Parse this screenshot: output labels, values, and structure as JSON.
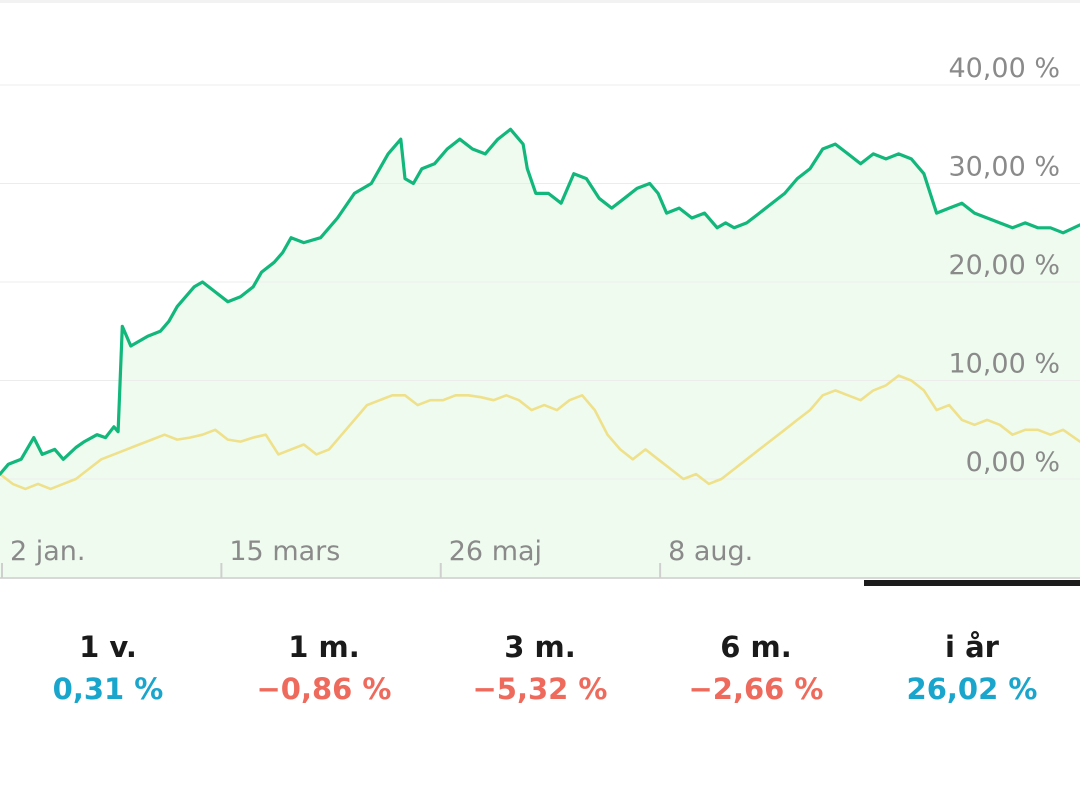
{
  "colors": {
    "series_main": "#12b77c",
    "series_index": "#efe08a",
    "area_fill": "#effbef",
    "positive": "#1aa6cc",
    "negative": "#ee6a5c",
    "grid": "#ececec",
    "tick_text": "#8a8a8a"
  },
  "chart_data": {
    "type": "line",
    "y_tick_labels": [
      "40,00 %",
      "30,00 %",
      "20,00 %",
      "10,00 %",
      "0,00 %"
    ],
    "y_ticks": [
      40,
      30,
      20,
      10,
      0
    ],
    "ylim": [
      -10,
      40
    ],
    "x_tick_labels": [
      "2 jan.",
      "15 mars",
      "26 maj",
      "8 aug."
    ],
    "x_tick_positions": [
      0,
      52,
      104,
      156
    ],
    "xlim": [
      0,
      256
    ],
    "grid": true,
    "legend": "none",
    "series": [
      {
        "values": [
          [
            0,
            0.5
          ],
          [
            2,
            1.5
          ],
          [
            5,
            2
          ],
          [
            8,
            4.2
          ],
          [
            10,
            2.5
          ],
          [
            13,
            3
          ],
          [
            15,
            2
          ],
          [
            18,
            3.2
          ],
          [
            20,
            3.8
          ],
          [
            23,
            4.5
          ],
          [
            25,
            4.2
          ],
          [
            27,
            5.3
          ],
          [
            28,
            4.8
          ],
          [
            29,
            15.5
          ],
          [
            31,
            13.5
          ],
          [
            35,
            14.5
          ],
          [
            38,
            15
          ],
          [
            40,
            16
          ],
          [
            42,
            17.5
          ],
          [
            44,
            18.5
          ],
          [
            46,
            19.5
          ],
          [
            48,
            20
          ],
          [
            51,
            19
          ],
          [
            54,
            18
          ],
          [
            57,
            18.5
          ],
          [
            60,
            19.5
          ],
          [
            62,
            21
          ],
          [
            65,
            22
          ],
          [
            67,
            23
          ],
          [
            69,
            24.5
          ],
          [
            72,
            24
          ],
          [
            76,
            24.5
          ],
          [
            80,
            26.5
          ],
          [
            84,
            29
          ],
          [
            88,
            30
          ],
          [
            92,
            33
          ],
          [
            95,
            34.5
          ],
          [
            96,
            30.5
          ],
          [
            98,
            30
          ],
          [
            100,
            31.5
          ],
          [
            103,
            32
          ],
          [
            106,
            33.5
          ],
          [
            109,
            34.5
          ],
          [
            112,
            33.5
          ],
          [
            115,
            33
          ],
          [
            118,
            34.5
          ],
          [
            121,
            35.5
          ],
          [
            124,
            34
          ],
          [
            125,
            31.5
          ],
          [
            127,
            29
          ],
          [
            130,
            29
          ],
          [
            133,
            28
          ],
          [
            136,
            31
          ],
          [
            139,
            30.5
          ],
          [
            142,
            28.5
          ],
          [
            145,
            27.5
          ],
          [
            148,
            28.5
          ],
          [
            151,
            29.5
          ],
          [
            154,
            30
          ],
          [
            156,
            29
          ],
          [
            158,
            27
          ],
          [
            161,
            27.5
          ],
          [
            164,
            26.5
          ],
          [
            167,
            27
          ],
          [
            170,
            25.5
          ],
          [
            172,
            26
          ],
          [
            174,
            25.5
          ],
          [
            177,
            26
          ],
          [
            180,
            27
          ],
          [
            183,
            28
          ],
          [
            186,
            29
          ],
          [
            189,
            30.5
          ],
          [
            192,
            31.5
          ],
          [
            195,
            33.5
          ],
          [
            198,
            34
          ],
          [
            201,
            33
          ],
          [
            204,
            32
          ],
          [
            207,
            33
          ],
          [
            210,
            32.5
          ],
          [
            213,
            33
          ],
          [
            216,
            32.5
          ],
          [
            219,
            31
          ],
          [
            222,
            27
          ],
          [
            225,
            27.5
          ],
          [
            228,
            28
          ],
          [
            231,
            27
          ],
          [
            234,
            26.5
          ],
          [
            237,
            26
          ],
          [
            240,
            25.5
          ],
          [
            243,
            26
          ],
          [
            246,
            25.5
          ],
          [
            249,
            25.5
          ],
          [
            252,
            25
          ],
          [
            256,
            25.8
          ]
        ]
      },
      {
        "values": [
          [
            0,
            0.5
          ],
          [
            3,
            -0.5
          ],
          [
            6,
            -1
          ],
          [
            9,
            -0.5
          ],
          [
            12,
            -1
          ],
          [
            15,
            -0.5
          ],
          [
            18,
            0
          ],
          [
            21,
            1
          ],
          [
            24,
            2
          ],
          [
            27,
            2.5
          ],
          [
            30,
            3
          ],
          [
            33,
            3.5
          ],
          [
            36,
            4
          ],
          [
            39,
            4.5
          ],
          [
            42,
            4
          ],
          [
            45,
            4.2
          ],
          [
            48,
            4.5
          ],
          [
            51,
            5
          ],
          [
            54,
            4
          ],
          [
            57,
            3.8
          ],
          [
            60,
            4.2
          ],
          [
            63,
            4.5
          ],
          [
            66,
            2.5
          ],
          [
            69,
            3
          ],
          [
            72,
            3.5
          ],
          [
            75,
            2.5
          ],
          [
            78,
            3
          ],
          [
            81,
            4.5
          ],
          [
            84,
            6
          ],
          [
            87,
            7.5
          ],
          [
            90,
            8
          ],
          [
            93,
            8.5
          ],
          [
            96,
            8.5
          ],
          [
            99,
            7.5
          ],
          [
            102,
            8
          ],
          [
            105,
            8
          ],
          [
            108,
            8.5
          ],
          [
            111,
            8.5
          ],
          [
            114,
            8.3
          ],
          [
            117,
            8
          ],
          [
            120,
            8.5
          ],
          [
            123,
            8
          ],
          [
            126,
            7
          ],
          [
            129,
            7.5
          ],
          [
            132,
            7
          ],
          [
            135,
            8
          ],
          [
            138,
            8.5
          ],
          [
            141,
            7
          ],
          [
            144,
            4.5
          ],
          [
            147,
            3
          ],
          [
            150,
            2
          ],
          [
            153,
            3
          ],
          [
            156,
            2
          ],
          [
            159,
            1
          ],
          [
            162,
            0
          ],
          [
            165,
            0.5
          ],
          [
            168,
            -0.5
          ],
          [
            171,
            0
          ],
          [
            174,
            1
          ],
          [
            177,
            2
          ],
          [
            180,
            3
          ],
          [
            183,
            4
          ],
          [
            186,
            5
          ],
          [
            189,
            6
          ],
          [
            192,
            7
          ],
          [
            195,
            8.5
          ],
          [
            198,
            9
          ],
          [
            201,
            8.5
          ],
          [
            204,
            8
          ],
          [
            207,
            9
          ],
          [
            210,
            9.5
          ],
          [
            213,
            10.5
          ],
          [
            216,
            10
          ],
          [
            219,
            9
          ],
          [
            222,
            7
          ],
          [
            225,
            7.5
          ],
          [
            228,
            6
          ],
          [
            231,
            5.5
          ],
          [
            234,
            6
          ],
          [
            237,
            5.5
          ],
          [
            240,
            4.5
          ],
          [
            243,
            5
          ],
          [
            246,
            5
          ],
          [
            249,
            4.5
          ],
          [
            252,
            5
          ],
          [
            256,
            3.8
          ]
        ]
      }
    ]
  },
  "tabs": [
    {
      "label": "1 v.",
      "value": "0,31 %",
      "sign": "positive"
    },
    {
      "label": "1 m.",
      "value": "−0,86 %",
      "sign": "negative"
    },
    {
      "label": "3 m.",
      "value": "−5,32 %",
      "sign": "negative"
    },
    {
      "label": "6 m.",
      "value": "−2,66 %",
      "sign": "negative"
    },
    {
      "label": "i år",
      "value": "26,02 %",
      "sign": "positive",
      "selected": true
    }
  ]
}
